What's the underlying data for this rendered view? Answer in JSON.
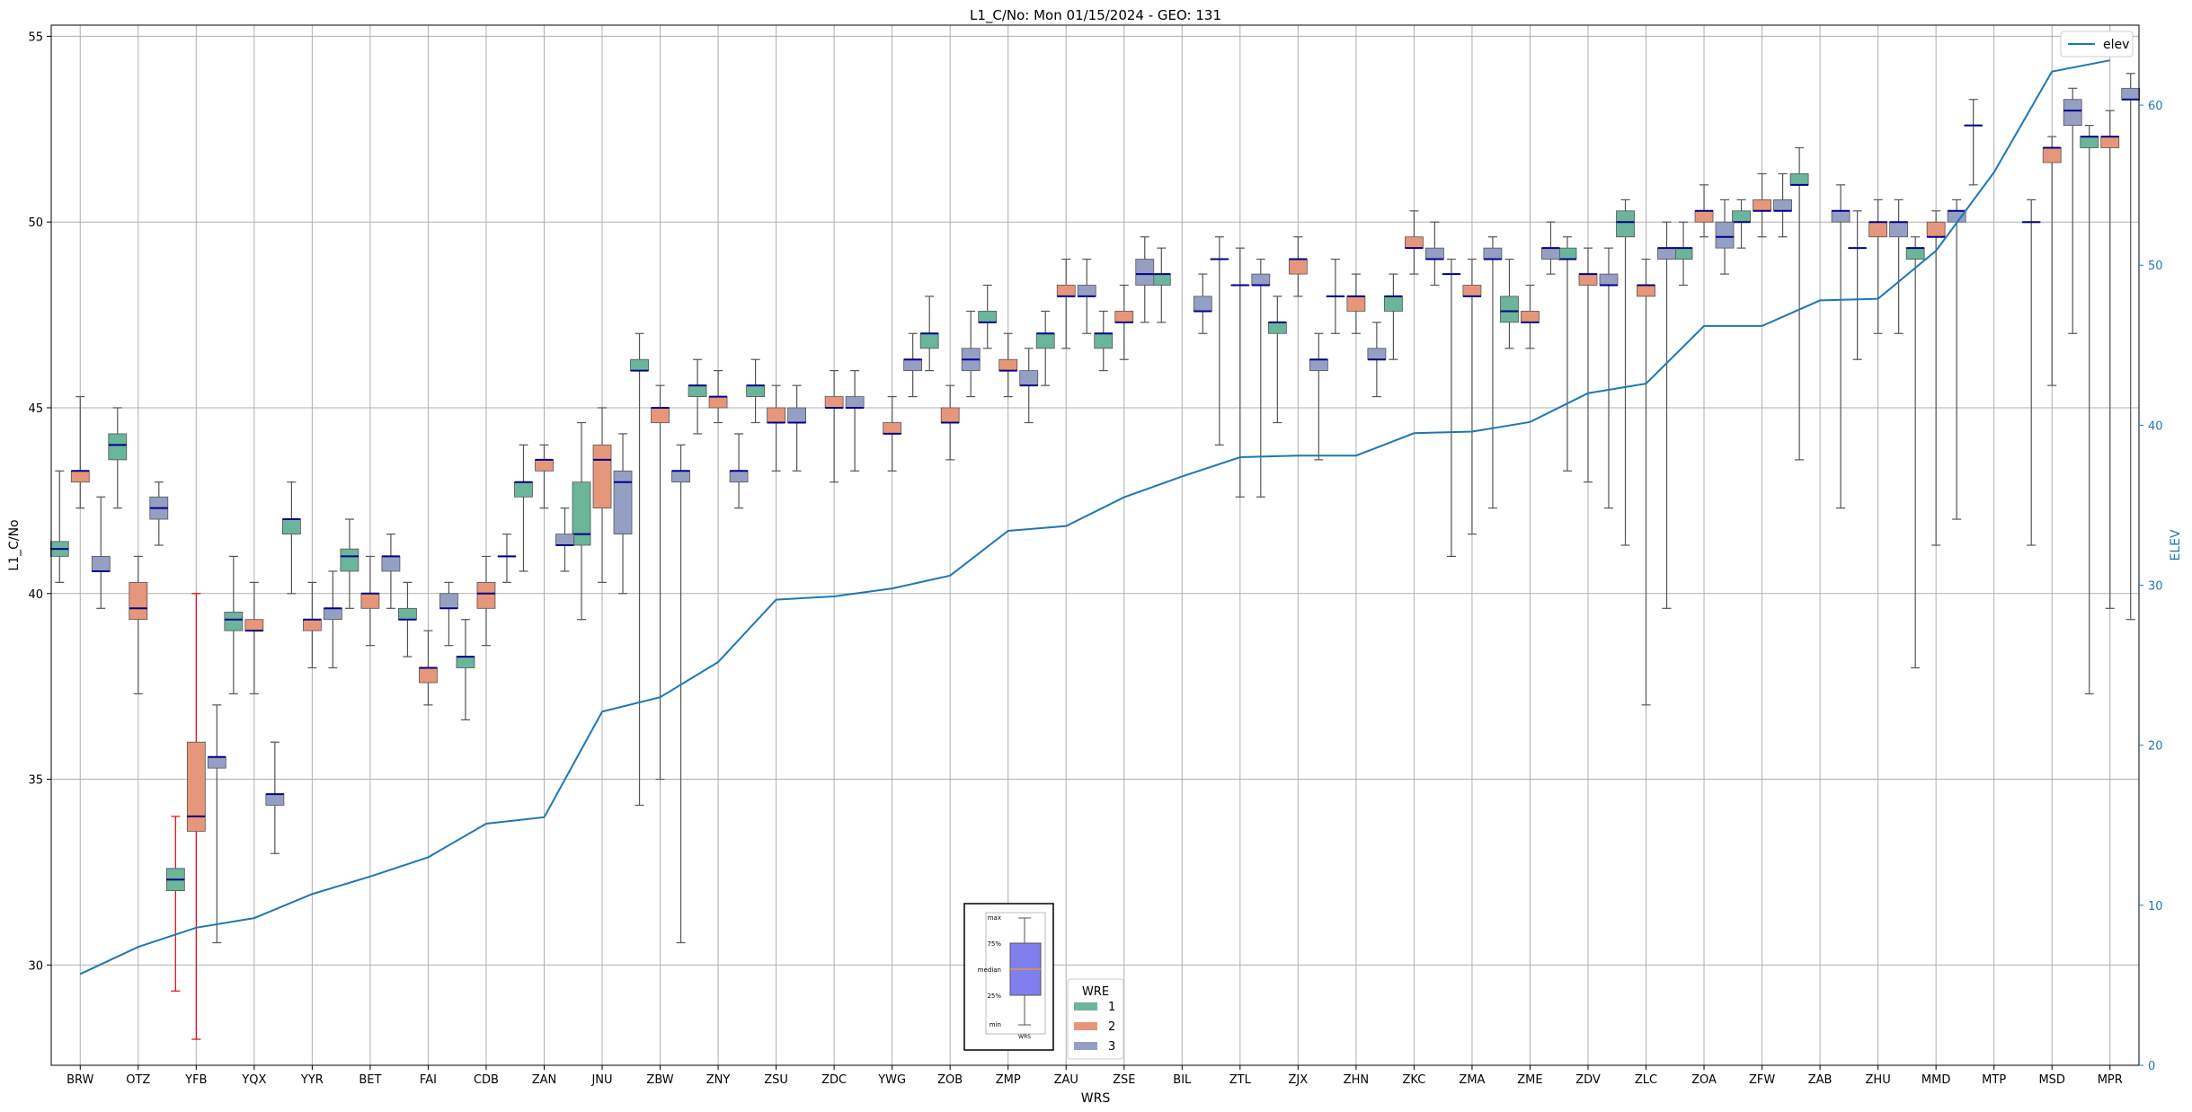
{
  "chart_data": {
    "type": "box",
    "title": "L1_C/No: Mon 01/15/2024 - GEO: 131",
    "xlabel": "WRS",
    "ylabel": "L1_C/No",
    "y2label": "ELEV",
    "ylim": [
      27.3,
      55.3
    ],
    "y2lim": [
      0,
      65
    ],
    "yticks": [
      30,
      35,
      40,
      45,
      50,
      55
    ],
    "y2ticks": [
      0,
      10,
      20,
      30,
      40,
      50,
      60
    ],
    "grid": true,
    "categories": [
      "BRW",
      "OTZ",
      "YFB",
      "YQX",
      "YYR",
      "BET",
      "FAI",
      "CDB",
      "ZAN",
      "JNU",
      "ZBW",
      "ZNY",
      "ZSU",
      "ZDC",
      "YWG",
      "ZOB",
      "ZMP",
      "ZAU",
      "ZSE",
      "BIL",
      "ZTL",
      "ZJX",
      "ZHN",
      "ZKC",
      "ZMA",
      "ZME",
      "ZDV",
      "ZLC",
      "ZOA",
      "ZFW",
      "ZAB",
      "ZHU",
      "MMD",
      "MTP",
      "MSD",
      "MPR"
    ],
    "legend": {
      "title": "WRE",
      "entries": [
        "1",
        "2",
        "3"
      ],
      "placement": "lower-center"
    },
    "legend2": {
      "entries": [
        "elev"
      ],
      "placement": "upper-right"
    },
    "colors": {
      "wre1": "#6bb59a",
      "wre2": "#e6967a",
      "wre3": "#959fc4",
      "median": "#00008b",
      "elev": "#1f77b4",
      "whisker": "#555555",
      "outlier_whisker": "#e8000b"
    },
    "elev": [
      5.7,
      7.4,
      8.6,
      9.2,
      10.7,
      11.8,
      13.0,
      15.1,
      15.5,
      22.1,
      23.0,
      25.2,
      29.1,
      29.3,
      29.8,
      30.6,
      33.4,
      33.7,
      35.5,
      36.8,
      38.0,
      38.1,
      38.1,
      39.5,
      39.6,
      40.2,
      42.0,
      42.6,
      46.2,
      46.2,
      47.8,
      47.9,
      50.9,
      55.8,
      62.1,
      62.8
    ],
    "series": [
      {
        "name": "1",
        "boxes": [
          {
            "cat": 0,
            "min": 40.3,
            "q1": 41.0,
            "median": 41.2,
            "q3": 41.4,
            "max": 43.3
          },
          {
            "cat": 1,
            "min": 42.3,
            "q1": 43.6,
            "median": 44.0,
            "q3": 44.3,
            "max": 45.0
          },
          {
            "cat": 2,
            "min": 29.3,
            "q1": 32.0,
            "median": 32.3,
            "q3": 32.6,
            "max": 34.0,
            "whisker": "red"
          },
          {
            "cat": 3,
            "min": 37.3,
            "q1": 39.0,
            "median": 39.3,
            "q3": 39.5,
            "max": 41.0
          },
          {
            "cat": 4,
            "min": 40.0,
            "q1": 41.6,
            "median": 42.0,
            "q3": 42.0,
            "max": 43.0
          },
          {
            "cat": 5,
            "min": 39.6,
            "q1": 40.6,
            "median": 41.0,
            "q3": 41.2,
            "max": 42.0
          },
          {
            "cat": 6,
            "min": 38.3,
            "q1": 39.3,
            "median": 39.3,
            "q3": 39.6,
            "max": 40.3
          },
          {
            "cat": 7,
            "min": 36.6,
            "q1": 38.0,
            "median": 38.3,
            "q3": 38.3,
            "max": 39.3
          },
          {
            "cat": 8,
            "min": 40.6,
            "q1": 42.6,
            "median": 43.0,
            "q3": 43.0,
            "max": 44.0
          },
          {
            "cat": 9,
            "min": 39.3,
            "q1": 41.3,
            "median": 41.6,
            "q3": 43.0,
            "max": 44.6
          },
          {
            "cat": 10,
            "min": 34.3,
            "q1": 46.0,
            "median": 46.0,
            "q3": 46.3,
            "max": 47.0
          },
          {
            "cat": 11,
            "min": 44.3,
            "q1": 45.3,
            "median": 45.6,
            "q3": 45.6,
            "max": 46.3
          },
          {
            "cat": 12,
            "min": 44.6,
            "q1": 45.3,
            "median": 45.6,
            "q3": 45.6,
            "max": 46.3
          },
          {
            "cat": 15,
            "min": 46.0,
            "q1": 46.6,
            "median": 47.0,
            "q3": 47.0,
            "max": 48.0
          },
          {
            "cat": 16,
            "min": 46.6,
            "q1": 47.3,
            "median": 47.3,
            "q3": 47.6,
            "max": 48.3
          },
          {
            "cat": 17,
            "min": 45.6,
            "q1": 46.6,
            "median": 47.0,
            "q3": 47.0,
            "max": 47.6
          },
          {
            "cat": 18,
            "min": 46.0,
            "q1": 46.6,
            "median": 47.0,
            "q3": 47.0,
            "max": 47.6
          },
          {
            "cat": 19,
            "min": 47.3,
            "q1": 48.3,
            "median": 48.6,
            "q3": 48.6,
            "max": 49.3
          },
          {
            "cat": 20,
            "min": 44.0,
            "q1": 49.0,
            "median": 49.0,
            "q3": 49.0,
            "max": 49.6
          },
          {
            "cat": 21,
            "min": 44.6,
            "q1": 47.0,
            "median": 47.3,
            "q3": 47.3,
            "max": 48.0
          },
          {
            "cat": 22,
            "min": 47.0,
            "q1": 48.0,
            "median": 48.0,
            "q3": 48.0,
            "max": 49.0
          },
          {
            "cat": 23,
            "min": 46.3,
            "q1": 47.6,
            "median": 48.0,
            "q3": 48.0,
            "max": 48.6
          },
          {
            "cat": 24,
            "min": 41.0,
            "q1": 48.6,
            "median": 48.6,
            "q3": 48.6,
            "max": 49.0
          },
          {
            "cat": 25,
            "min": 46.6,
            "q1": 47.3,
            "median": 47.6,
            "q3": 48.0,
            "max": 49.0
          },
          {
            "cat": 26,
            "min": 43.3,
            "q1": 49.0,
            "median": 49.0,
            "q3": 49.3,
            "max": 49.6
          },
          {
            "cat": 27,
            "min": 41.3,
            "q1": 49.6,
            "median": 50.0,
            "q3": 50.3,
            "max": 50.6
          },
          {
            "cat": 28,
            "min": 48.3,
            "q1": 49.0,
            "median": 49.3,
            "q3": 49.3,
            "max": 50.0
          },
          {
            "cat": 29,
            "min": 49.3,
            "q1": 50.0,
            "median": 50.0,
            "q3": 50.3,
            "max": 50.6
          },
          {
            "cat": 30,
            "min": 43.6,
            "q1": 51.0,
            "median": 51.0,
            "q3": 51.3,
            "max": 52.0
          },
          {
            "cat": 31,
            "min": 46.3,
            "q1": 49.3,
            "median": 49.3,
            "q3": 49.3,
            "max": 50.3
          },
          {
            "cat": 32,
            "min": 38.0,
            "q1": 49.0,
            "median": 49.3,
            "q3": 49.3,
            "max": 49.6
          },
          {
            "cat": 33,
            "min": 51.0,
            "q1": 52.6,
            "median": 52.6,
            "q3": 52.6,
            "max": 53.3
          },
          {
            "cat": 34,
            "min": 41.3,
            "q1": 50.0,
            "median": 50.0,
            "q3": 50.0,
            "max": 50.6
          },
          {
            "cat": 35,
            "min": 37.3,
            "q1": 52.0,
            "median": 52.3,
            "q3": 52.3,
            "max": 52.6
          }
        ]
      },
      {
        "name": "2",
        "boxes": [
          {
            "cat": 0,
            "min": 42.3,
            "q1": 43.0,
            "median": 43.3,
            "q3": 43.3,
            "max": 45.3
          },
          {
            "cat": 1,
            "min": 37.3,
            "q1": 39.3,
            "median": 39.6,
            "q3": 40.3,
            "max": 41.0
          },
          {
            "cat": 2,
            "min": 28.0,
            "q1": 33.6,
            "median": 34.0,
            "q3": 36.0,
            "max": 40.0,
            "whisker": "red"
          },
          {
            "cat": 3,
            "min": 37.3,
            "q1": 39.0,
            "median": 39.0,
            "q3": 39.3,
            "max": 40.3
          },
          {
            "cat": 4,
            "min": 38.0,
            "q1": 39.0,
            "median": 39.3,
            "q3": 39.3,
            "max": 40.3
          },
          {
            "cat": 5,
            "min": 38.6,
            "q1": 39.6,
            "median": 40.0,
            "q3": 40.0,
            "max": 41.0
          },
          {
            "cat": 6,
            "min": 37.0,
            "q1": 37.6,
            "median": 38.0,
            "q3": 38.0,
            "max": 39.0
          },
          {
            "cat": 7,
            "min": 38.6,
            "q1": 39.6,
            "median": 40.0,
            "q3": 40.3,
            "max": 41.0
          },
          {
            "cat": 8,
            "min": 42.3,
            "q1": 43.3,
            "median": 43.6,
            "q3": 43.6,
            "max": 44.0
          },
          {
            "cat": 9,
            "min": 40.3,
            "q1": 42.3,
            "median": 43.6,
            "q3": 44.0,
            "max": 45.0
          },
          {
            "cat": 10,
            "min": 35.0,
            "q1": 44.6,
            "median": 45.0,
            "q3": 45.0,
            "max": 45.6
          },
          {
            "cat": 11,
            "min": 44.6,
            "q1": 45.0,
            "median": 45.3,
            "q3": 45.3,
            "max": 46.0
          },
          {
            "cat": 12,
            "min": 43.3,
            "q1": 44.6,
            "median": 44.6,
            "q3": 45.0,
            "max": 45.6
          },
          {
            "cat": 13,
            "min": 43.0,
            "q1": 45.0,
            "median": 45.0,
            "q3": 45.3,
            "max": 46.0
          },
          {
            "cat": 14,
            "min": 43.3,
            "q1": 44.3,
            "median": 44.3,
            "q3": 44.6,
            "max": 45.3
          },
          {
            "cat": 15,
            "min": 43.6,
            "q1": 44.6,
            "median": 44.6,
            "q3": 45.0,
            "max": 45.6
          },
          {
            "cat": 16,
            "min": 45.3,
            "q1": 46.0,
            "median": 46.0,
            "q3": 46.3,
            "max": 47.0
          },
          {
            "cat": 17,
            "min": 46.6,
            "q1": 48.0,
            "median": 48.0,
            "q3": 48.3,
            "max": 49.0
          },
          {
            "cat": 18,
            "min": 46.3,
            "q1": 47.3,
            "median": 47.3,
            "q3": 47.6,
            "max": 48.3
          },
          {
            "cat": 20,
            "min": 42.6,
            "q1": 48.3,
            "median": 48.3,
            "q3": 48.3,
            "max": 49.3
          },
          {
            "cat": 21,
            "min": 48.0,
            "q1": 48.6,
            "median": 49.0,
            "q3": 49.0,
            "max": 49.6
          },
          {
            "cat": 22,
            "min": 47.0,
            "q1": 47.6,
            "median": 48.0,
            "q3": 48.0,
            "max": 48.6
          },
          {
            "cat": 23,
            "min": 48.6,
            "q1": 49.3,
            "median": 49.3,
            "q3": 49.6,
            "max": 50.3
          },
          {
            "cat": 24,
            "min": 41.6,
            "q1": 48.0,
            "median": 48.0,
            "q3": 48.3,
            "max": 49.0
          },
          {
            "cat": 25,
            "min": 46.6,
            "q1": 47.3,
            "median": 47.3,
            "q3": 47.6,
            "max": 48.3
          },
          {
            "cat": 26,
            "min": 43.0,
            "q1": 48.3,
            "median": 48.6,
            "q3": 48.6,
            "max": 49.3
          },
          {
            "cat": 27,
            "min": 37.0,
            "q1": 48.0,
            "median": 48.3,
            "q3": 48.3,
            "max": 49.0
          },
          {
            "cat": 28,
            "min": 49.6,
            "q1": 50.0,
            "median": 50.3,
            "q3": 50.3,
            "max": 51.0
          },
          {
            "cat": 29,
            "min": 49.6,
            "q1": 50.3,
            "median": 50.3,
            "q3": 50.6,
            "max": 51.3
          },
          {
            "cat": 31,
            "min": 47.0,
            "q1": 49.6,
            "median": 50.0,
            "q3": 50.0,
            "max": 50.6
          },
          {
            "cat": 32,
            "min": 41.3,
            "q1": 49.6,
            "median": 49.6,
            "q3": 50.0,
            "max": 50.3
          },
          {
            "cat": 34,
            "min": 45.6,
            "q1": 51.6,
            "median": 52.0,
            "q3": 52.0,
            "max": 52.3
          },
          {
            "cat": 35,
            "min": 39.6,
            "q1": 52.0,
            "median": 52.3,
            "q3": 52.3,
            "max": 53.0
          }
        ]
      },
      {
        "name": "3",
        "boxes": [
          {
            "cat": 0,
            "min": 39.6,
            "q1": 40.6,
            "median": 40.6,
            "q3": 41.0,
            "max": 42.6
          },
          {
            "cat": 1,
            "min": 41.3,
            "q1": 42.0,
            "median": 42.3,
            "q3": 42.6,
            "max": 43.0
          },
          {
            "cat": 2,
            "min": 30.6,
            "q1": 35.3,
            "median": 35.6,
            "q3": 35.6,
            "max": 37.0
          },
          {
            "cat": 3,
            "min": 33.0,
            "q1": 34.3,
            "median": 34.6,
            "q3": 34.6,
            "max": 36.0
          },
          {
            "cat": 4,
            "min": 38.0,
            "q1": 39.3,
            "median": 39.6,
            "q3": 39.6,
            "max": 40.6
          },
          {
            "cat": 5,
            "min": 39.6,
            "q1": 40.6,
            "median": 41.0,
            "q3": 41.0,
            "max": 41.6
          },
          {
            "cat": 6,
            "min": 38.6,
            "q1": 39.6,
            "median": 39.6,
            "q3": 40.0,
            "max": 40.3
          },
          {
            "cat": 7,
            "min": 40.3,
            "q1": 41.0,
            "median": 41.0,
            "q3": 41.0,
            "max": 41.6
          },
          {
            "cat": 8,
            "min": 40.6,
            "q1": 41.3,
            "median": 41.3,
            "q3": 41.6,
            "max": 42.3
          },
          {
            "cat": 9,
            "min": 40.0,
            "q1": 41.6,
            "median": 43.0,
            "q3": 43.3,
            "max": 44.3
          },
          {
            "cat": 10,
            "min": 30.6,
            "q1": 43.0,
            "median": 43.3,
            "q3": 43.3,
            "max": 44.0
          },
          {
            "cat": 11,
            "min": 42.3,
            "q1": 43.0,
            "median": 43.3,
            "q3": 43.3,
            "max": 44.3
          },
          {
            "cat": 12,
            "min": 43.3,
            "q1": 44.6,
            "median": 44.6,
            "q3": 45.0,
            "max": 45.6
          },
          {
            "cat": 13,
            "min": 43.3,
            "q1": 45.0,
            "median": 45.0,
            "q3": 45.3,
            "max": 46.0
          },
          {
            "cat": 14,
            "min": 45.3,
            "q1": 46.0,
            "median": 46.3,
            "q3": 46.3,
            "max": 47.0
          },
          {
            "cat": 15,
            "min": 45.3,
            "q1": 46.0,
            "median": 46.3,
            "q3": 46.6,
            "max": 47.6
          },
          {
            "cat": 16,
            "min": 44.6,
            "q1": 45.6,
            "median": 45.6,
            "q3": 46.0,
            "max": 46.6
          },
          {
            "cat": 17,
            "min": 47.0,
            "q1": 48.0,
            "median": 48.0,
            "q3": 48.3,
            "max": 49.0
          },
          {
            "cat": 18,
            "min": 47.3,
            "q1": 48.3,
            "median": 48.6,
            "q3": 49.0,
            "max": 49.6
          },
          {
            "cat": 19,
            "min": 47.0,
            "q1": 47.6,
            "median": 47.6,
            "q3": 48.0,
            "max": 48.6
          },
          {
            "cat": 20,
            "min": 42.6,
            "q1": 48.3,
            "median": 48.3,
            "q3": 48.6,
            "max": 49.0
          },
          {
            "cat": 21,
            "min": 43.6,
            "q1": 46.0,
            "median": 46.3,
            "q3": 46.3,
            "max": 47.0
          },
          {
            "cat": 22,
            "min": 45.3,
            "q1": 46.3,
            "median": 46.3,
            "q3": 46.6,
            "max": 47.3
          },
          {
            "cat": 23,
            "min": 48.3,
            "q1": 49.0,
            "median": 49.0,
            "q3": 49.3,
            "max": 50.0
          },
          {
            "cat": 24,
            "min": 42.3,
            "q1": 49.0,
            "median": 49.0,
            "q3": 49.3,
            "max": 49.6
          },
          {
            "cat": 25,
            "min": 48.6,
            "q1": 49.0,
            "median": 49.3,
            "q3": 49.3,
            "max": 50.0
          },
          {
            "cat": 26,
            "min": 42.3,
            "q1": 48.3,
            "median": 48.3,
            "q3": 48.6,
            "max": 49.3
          },
          {
            "cat": 27,
            "min": 39.6,
            "q1": 49.0,
            "median": 49.3,
            "q3": 49.3,
            "max": 50.0
          },
          {
            "cat": 28,
            "min": 48.6,
            "q1": 49.3,
            "median": 49.6,
            "q3": 50.0,
            "max": 50.6
          },
          {
            "cat": 29,
            "min": 49.6,
            "q1": 50.3,
            "median": 50.3,
            "q3": 50.6,
            "max": 51.3
          },
          {
            "cat": 30,
            "min": 42.3,
            "q1": 50.0,
            "median": 50.3,
            "q3": 50.3,
            "max": 51.0
          },
          {
            "cat": 31,
            "min": 47.0,
            "q1": 49.6,
            "median": 50.0,
            "q3": 50.0,
            "max": 50.6
          },
          {
            "cat": 32,
            "min": 42.0,
            "q1": 50.0,
            "median": 50.3,
            "q3": 50.3,
            "max": 50.6
          },
          {
            "cat": 34,
            "min": 47.0,
            "q1": 52.6,
            "median": 53.0,
            "q3": 53.3,
            "max": 53.6
          },
          {
            "cat": 35,
            "min": 39.3,
            "q1": 53.3,
            "median": 53.3,
            "q3": 53.6,
            "max": 54.0
          }
        ]
      }
    ],
    "inset": {
      "labels": [
        "max",
        "75%",
        "median",
        "25%",
        "min"
      ],
      "xlabel": "WRS"
    }
  }
}
